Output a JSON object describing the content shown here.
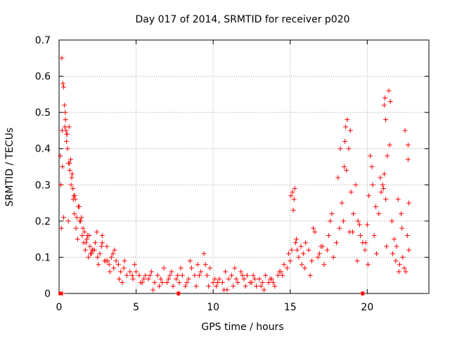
{
  "chart_data": {
    "type": "scatter",
    "title": "Day 017 of 2014, SRMTID for receiver p020",
    "xlabel": "GPS time / hours",
    "ylabel": "SRMTID / TECUs",
    "xlim": [
      0,
      24
    ],
    "ylim": [
      0,
      0.7
    ],
    "xticks": [
      0,
      5,
      10,
      15,
      20
    ],
    "yticks": [
      0,
      0.1,
      0.2,
      0.3,
      0.4,
      0.5,
      0.6,
      0.7
    ],
    "xtick_labels": [
      "0",
      "5",
      "10",
      "15",
      "20"
    ],
    "ytick_labels": [
      "0",
      "0.1",
      "0.2",
      "0.3",
      "0.4",
      "0.5",
      "0.6",
      "0.7"
    ],
    "grid": true,
    "marker": "+",
    "marker_color": "#ff0000",
    "axis_color": "#000000",
    "grid_color": "#a0a0a0",
    "background": "#ffffff",
    "series": [
      {
        "name": "SRMTID p020",
        "x": [
          0.08,
          0.18,
          0.25,
          0.3,
          0.35,
          0.42,
          0.48,
          0.55,
          0.62,
          0.7,
          0.78,
          0.85,
          0.92,
          1.0,
          1.1,
          1.2,
          1.3,
          1.4,
          1.5,
          1.6,
          1.7,
          1.8,
          1.9,
          2.0,
          2.1,
          2.2,
          2.35,
          2.5,
          2.65,
          2.8,
          2.95,
          3.1,
          3.25,
          3.4,
          3.55,
          3.7,
          3.85,
          4.0,
          4.2,
          4.4,
          4.6,
          4.8,
          5.0,
          5.2,
          5.4,
          5.6,
          5.8,
          6.0,
          6.2,
          6.4,
          6.6,
          6.8,
          7.0,
          7.2,
          7.4,
          7.6,
          7.8,
          8.0,
          8.2,
          8.4,
          8.6,
          8.8,
          9.0,
          9.2,
          9.4,
          9.6,
          9.8,
          10.0,
          10.2,
          10.4,
          10.6,
          10.8,
          11.0,
          11.2,
          11.4,
          11.6,
          11.8,
          12.0,
          12.2,
          12.4,
          12.6,
          12.8,
          13.0,
          13.2,
          13.4,
          13.6,
          13.8,
          14.0,
          14.2,
          14.4,
          14.6,
          14.8,
          15.0,
          15.1,
          15.2,
          15.3,
          15.4,
          15.55,
          15.7,
          15.85,
          16.0,
          16.2,
          16.4,
          16.6,
          16.8,
          17.0,
          17.2,
          17.4,
          17.6,
          17.8,
          18.0,
          18.2,
          18.35,
          18.5,
          18.6,
          18.7,
          18.8,
          18.95,
          19.1,
          19.25,
          19.4,
          19.55,
          19.7,
          19.85,
          20.0,
          20.1,
          20.2,
          20.3,
          20.45,
          20.6,
          20.75,
          20.9,
          21.0,
          21.1,
          21.2,
          21.3,
          21.4,
          21.5,
          21.6,
          21.75,
          21.9,
          22.0,
          22.1,
          22.2,
          22.3,
          22.4,
          22.5,
          22.6,
          22.7,
          0.15,
          0.3,
          0.45,
          0.6,
          0.75,
          0.9,
          1.05,
          1.25,
          1.45,
          1.65,
          1.85,
          2.05,
          2.3,
          2.55,
          2.8,
          3.05,
          3.3,
          3.6,
          3.9,
          4.25,
          4.75,
          5.3,
          5.9,
          6.5,
          7.1,
          7.7,
          8.3,
          8.9,
          9.5,
          10.1,
          10.7,
          11.3,
          11.9,
          12.5,
          13.1,
          13.7,
          14.3,
          14.9,
          15.35,
          15.75,
          16.3,
          16.9,
          17.5,
          18.1,
          18.45,
          18.85,
          19.35,
          19.9,
          20.35,
          20.85,
          21.25,
          21.65,
          22.05,
          22.45,
          0.12,
          0.22,
          0.38,
          0.52,
          0.68,
          0.82,
          0.96,
          1.15,
          1.35,
          1.55,
          1.75,
          1.95,
          2.15,
          2.45,
          2.75,
          3.15,
          3.5,
          4.1,
          4.9,
          5.5,
          6.1,
          6.7,
          7.3,
          7.9,
          8.5,
          9.1,
          9.7,
          10.3,
          10.9,
          11.5,
          12.1,
          12.7,
          13.3,
          13.9,
          14.5,
          15.05,
          15.45,
          15.95,
          16.5,
          17.1,
          17.7,
          18.25,
          18.65,
          19.05,
          19.5,
          20.05,
          20.55,
          21.05,
          21.45,
          21.85,
          22.25,
          22.65,
          0.22,
          19.7,
          7.75,
          0.2,
          0.4,
          0.5,
          0.65,
          1.02,
          15.15,
          15.25,
          18.55,
          18.9,
          21.1,
          21.15,
          21.2,
          22.65,
          22.7
        ],
        "y": [
          0.38,
          0.65,
          0.58,
          0.57,
          0.52,
          0.48,
          0.42,
          0.4,
          0.36,
          0.34,
          0.3,
          0.33,
          0.26,
          0.22,
          0.18,
          0.15,
          0.24,
          0.2,
          0.16,
          0.14,
          0.12,
          0.15,
          0.1,
          0.13,
          0.11,
          0.12,
          0.14,
          0.1,
          0.11,
          0.16,
          0.09,
          0.13,
          0.08,
          0.1,
          0.07,
          0.09,
          0.08,
          0.06,
          0.07,
          0.05,
          0.06,
          0.04,
          0.06,
          0.05,
          0.03,
          0.05,
          0.04,
          0.06,
          0.03,
          0.05,
          0.04,
          0.07,
          0.03,
          0.05,
          0.02,
          0.04,
          0.03,
          0.05,
          0.02,
          0.04,
          0.07,
          0.05,
          0.08,
          0.06,
          0.11,
          0.05,
          0.07,
          0.03,
          0.02,
          0.04,
          0.03,
          0.06,
          0.04,
          0.05,
          0.07,
          0.03,
          0.06,
          0.04,
          0.05,
          0.03,
          0.05,
          0.02,
          0.04,
          0.03,
          0.05,
          0.03,
          0.04,
          0.02,
          0.05,
          0.06,
          0.08,
          0.07,
          0.09,
          0.12,
          0.23,
          0.29,
          0.15,
          0.1,
          0.13,
          0.11,
          0.14,
          0.12,
          0.09,
          0.17,
          0.1,
          0.13,
          0.08,
          0.12,
          0.2,
          0.1,
          0.14,
          0.18,
          0.25,
          0.35,
          0.46,
          0.48,
          0.4,
          0.28,
          0.22,
          0.3,
          0.2,
          0.16,
          0.14,
          0.12,
          0.19,
          0.27,
          0.38,
          0.35,
          0.16,
          0.11,
          0.22,
          0.28,
          0.3,
          0.33,
          0.26,
          0.38,
          0.56,
          0.53,
          0.2,
          0.15,
          0.13,
          0.26,
          0.08,
          0.22,
          0.1,
          0.07,
          0.06,
          0.16,
          0.12,
          0.18,
          0.21,
          0.45,
          0.2,
          0.37,
          0.29,
          0.26,
          0.24,
          0.21,
          0.17,
          0.16,
          0.11,
          0.12,
          0.08,
          0.14,
          0.09,
          0.06,
          0.12,
          0.04,
          0.09,
          0.05,
          0.03,
          0.05,
          0.02,
          0.04,
          0.05,
          0.03,
          0.02,
          0.08,
          0.04,
          0.01,
          0.02,
          0.05,
          0.03,
          0.02,
          0.04,
          0.06,
          0.11,
          0.14,
          0.08,
          0.05,
          0.11,
          0.16,
          0.32,
          0.2,
          0.17,
          0.09,
          0.14,
          0.3,
          0.32,
          0.13,
          0.11,
          0.06,
          0.45,
          0.3,
          0.35,
          0.46,
          0.44,
          0.36,
          0.32,
          0.27,
          0.21,
          0.2,
          0.18,
          0.14,
          0.16,
          0.12,
          0.17,
          0.13,
          0.09,
          0.11,
          0.03,
          0.08,
          0.04,
          0.01,
          0.03,
          0.06,
          0.07,
          0.09,
          0.05,
          0.02,
          0.03,
          0.01,
          0.04,
          0.02,
          0.04,
          0.01,
          0.03,
          0.05,
          0.27,
          0.12,
          0.07,
          0.18,
          0.13,
          0.22,
          0.4,
          0.34,
          0.17,
          0.19,
          0.08,
          0.24,
          0.29,
          0.41,
          0.09,
          0.18,
          0.41,
          0.0,
          0.0,
          0.0,
          0.45,
          0.5,
          0.44,
          0.46,
          0.27,
          0.28,
          0.26,
          0.42,
          0.45,
          0.52,
          0.54,
          0.48,
          0.37,
          0.25
        ]
      }
    ],
    "axis_markers": {
      "x": [
        0.08,
        19.7,
        7.75
      ]
    }
  }
}
